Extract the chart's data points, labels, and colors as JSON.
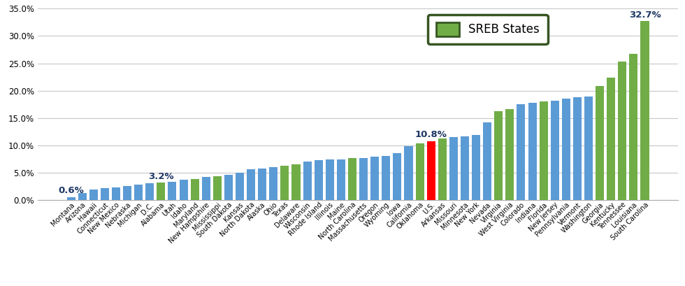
{
  "states": [
    "Montana",
    "Arizona",
    "Hawaii",
    "Connecticut",
    "New Mexico",
    "Nebraska",
    "Michigan",
    "D.C.",
    "Alabama",
    "Utah",
    "Idaho",
    "Maryland",
    "New Hampshire",
    "Mississippi",
    "South Dakota",
    "Kansas",
    "North Dakota",
    "Alaska",
    "Ohio",
    "Texas",
    "Delaware",
    "Wisconsin",
    "Rhode Island",
    "Illinois",
    "Maine",
    "North Carolina",
    "Massachusetts",
    "Oregon",
    "Wyoming",
    "Iowa",
    "California",
    "Oklahoma",
    "U.S.",
    "Arkansas",
    "Missouri",
    "Minnesota",
    "New York",
    "Nevada",
    "Virginia",
    "West Virginia",
    "Colorado",
    "Indiana",
    "Florida",
    "New Jersey",
    "Pennsylvania",
    "Vermont",
    "Washington",
    "Georgia",
    "Kentucky",
    "Tennessee",
    "Louisiana",
    "South Carolina"
  ],
  "values": [
    0.6,
    1.3,
    1.9,
    2.2,
    2.4,
    2.6,
    2.9,
    3.1,
    3.2,
    3.3,
    3.7,
    3.9,
    4.2,
    4.4,
    4.6,
    5.0,
    5.7,
    5.8,
    6.0,
    6.3,
    6.5,
    7.1,
    7.3,
    7.4,
    7.5,
    7.7,
    7.7,
    7.9,
    8.1,
    8.6,
    9.9,
    10.4,
    10.8,
    11.3,
    11.5,
    11.7,
    11.9,
    14.2,
    16.3,
    16.6,
    17.6,
    17.8,
    18.0,
    18.2,
    18.5,
    18.8,
    19.0,
    20.8,
    22.4,
    25.3,
    26.7,
    32.7
  ],
  "sreb_states": [
    "Alabama",
    "Arkansas",
    "Delaware",
    "Florida",
    "Georgia",
    "Kentucky",
    "Louisiana",
    "Maryland",
    "Mississippi",
    "North Carolina",
    "Oklahoma",
    "South Carolina",
    "Tennessee",
    "Texas",
    "Virginia",
    "West Virginia"
  ],
  "us_state": "U.S.",
  "bar_color_blue": "#5B9BD5",
  "bar_color_green": "#70AD47",
  "bar_color_red": "#FF0000",
  "annotated_labels": {
    "Montana": "0.6%",
    "Alabama": "3.2%",
    "South Carolina": "32.7%"
  },
  "annotated_us_label": "10.8%",
  "ylim": [
    0,
    35.0
  ],
  "yticks": [
    0.0,
    5.0,
    10.0,
    15.0,
    20.0,
    25.0,
    30.0,
    35.0
  ],
  "legend_label": "SREB States",
  "legend_box_color": "#70AD47",
  "legend_box_edge_color": "#375623",
  "bg_color": "#FFFFFF",
  "grid_color": "#C8C8C8",
  "annotation_color": "#1F3864",
  "annotation_fontsize": 9.5,
  "tick_fontsize": 7.0,
  "ytick_fontsize": 8.5
}
